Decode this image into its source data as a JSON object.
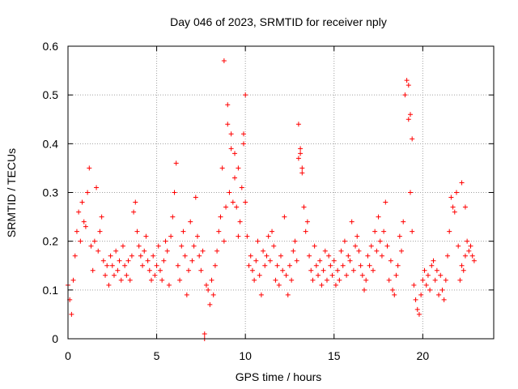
{
  "chart_data": {
    "type": "scatter",
    "title": "Day 046 of 2023, SRMTID for receiver nply",
    "xlabel": "GPS time / hours",
    "ylabel": "SRMTID / TECUs",
    "xlim": [
      0,
      24
    ],
    "ylim": [
      0,
      0.6
    ],
    "xticks": [
      0,
      5,
      10,
      15,
      20
    ],
    "xtick_labels": [
      "0",
      "5",
      "10",
      "15",
      "20"
    ],
    "yticks": [
      0,
      0.1,
      0.2,
      0.3,
      0.4,
      0.5,
      0.6
    ],
    "ytick_labels": [
      "0",
      "0.1",
      "0.2",
      "0.3",
      "0.4",
      "0.5",
      "0.6"
    ],
    "grid": true,
    "marker": "+",
    "marker_color": "#ff0000",
    "series": [
      {
        "name": "SRMTID",
        "x": [
          0.0,
          0.1,
          0.2,
          0.3,
          0.4,
          0.5,
          0.6,
          0.7,
          0.8,
          0.9,
          1.0,
          1.1,
          1.2,
          1.3,
          1.4,
          1.5,
          1.6,
          1.7,
          1.8,
          1.9,
          2.0,
          2.1,
          2.2,
          2.3,
          2.4,
          2.5,
          2.6,
          2.7,
          2.8,
          2.9,
          3.0,
          3.1,
          3.2,
          3.3,
          3.4,
          3.5,
          3.6,
          3.7,
          3.8,
          3.9,
          4.0,
          4.1,
          4.2,
          4.3,
          4.4,
          4.5,
          4.6,
          4.7,
          4.8,
          4.9,
          5.0,
          5.1,
          5.2,
          5.3,
          5.4,
          5.5,
          5.6,
          5.7,
          5.8,
          5.9,
          6.0,
          6.1,
          6.2,
          6.3,
          6.4,
          6.5,
          6.6,
          6.7,
          6.8,
          6.9,
          7.0,
          7.1,
          7.2,
          7.3,
          7.4,
          7.5,
          7.6,
          7.7,
          7.8,
          7.9,
          8.0,
          8.1,
          8.2,
          8.3,
          8.4,
          8.5,
          8.6,
          8.7,
          8.8,
          8.9,
          9.0,
          9.1,
          9.2,
          9.3,
          9.4,
          9.5,
          9.6,
          9.7,
          9.8,
          9.9,
          10.0,
          10.1,
          10.2,
          10.3,
          10.4,
          10.5,
          10.6,
          10.7,
          10.8,
          10.9,
          11.0,
          11.1,
          11.2,
          11.3,
          11.4,
          11.5,
          11.6,
          11.7,
          11.8,
          11.9,
          12.0,
          12.1,
          12.2,
          12.3,
          12.4,
          12.5,
          12.6,
          12.7,
          12.8,
          12.9,
          13.0,
          13.1,
          13.2,
          13.3,
          13.4,
          13.5,
          13.6,
          13.7,
          13.8,
          13.9,
          14.0,
          14.1,
          14.2,
          14.3,
          14.4,
          14.5,
          14.6,
          14.7,
          14.8,
          14.9,
          15.0,
          15.1,
          15.2,
          15.3,
          15.4,
          15.5,
          15.6,
          15.7,
          15.8,
          15.9,
          16.0,
          16.1,
          16.2,
          16.3,
          16.4,
          16.5,
          16.6,
          16.7,
          16.8,
          16.9,
          17.0,
          17.1,
          17.2,
          17.3,
          17.4,
          17.5,
          17.6,
          17.7,
          17.8,
          17.9,
          18.0,
          18.1,
          18.2,
          18.3,
          18.4,
          18.5,
          18.6,
          18.7,
          18.8,
          18.9,
          19.0,
          19.1,
          19.2,
          19.3,
          19.4,
          19.5,
          19.6,
          19.7,
          19.8,
          19.9,
          20.0,
          20.1,
          20.2,
          20.3,
          20.4,
          20.5,
          20.6,
          20.7,
          20.8,
          20.9,
          21.0,
          21.1,
          21.2,
          21.3,
          21.4,
          21.5,
          21.6,
          21.7,
          21.8,
          21.9,
          22.0,
          22.1,
          22.2,
          22.3,
          22.4,
          22.5,
          22.6,
          22.7,
          22.8,
          22.9,
          7.7,
          8.8,
          9.0,
          9.2,
          9.4,
          9.6,
          9.9,
          10.0,
          13.0,
          13.1,
          13.2,
          19.2,
          19.3,
          19.4,
          22.2,
          22.4
        ],
        "y": [
          0.11,
          0.08,
          0.05,
          0.12,
          0.17,
          0.22,
          0.26,
          0.2,
          0.28,
          0.24,
          0.23,
          0.3,
          0.35,
          0.19,
          0.14,
          0.2,
          0.31,
          0.18,
          0.22,
          0.25,
          0.16,
          0.13,
          0.15,
          0.11,
          0.17,
          0.15,
          0.13,
          0.18,
          0.14,
          0.16,
          0.12,
          0.19,
          0.15,
          0.13,
          0.16,
          0.12,
          0.17,
          0.26,
          0.28,
          0.22,
          0.19,
          0.17,
          0.15,
          0.18,
          0.21,
          0.16,
          0.14,
          0.12,
          0.17,
          0.13,
          0.15,
          0.19,
          0.14,
          0.12,
          0.16,
          0.2,
          0.18,
          0.11,
          0.21,
          0.25,
          0.3,
          0.36,
          0.15,
          0.12,
          0.19,
          0.22,
          0.17,
          0.09,
          0.14,
          0.24,
          0.16,
          0.19,
          0.29,
          0.21,
          0.17,
          0.14,
          0.18,
          0.0,
          0.11,
          0.1,
          0.07,
          0.12,
          0.09,
          0.15,
          0.18,
          0.22,
          0.25,
          0.35,
          0.2,
          0.27,
          0.44,
          0.3,
          0.39,
          0.28,
          0.33,
          0.27,
          0.21,
          0.24,
          0.31,
          0.4,
          0.28,
          0.21,
          0.15,
          0.17,
          0.14,
          0.12,
          0.16,
          0.2,
          0.13,
          0.09,
          0.18,
          0.15,
          0.17,
          0.21,
          0.16,
          0.22,
          0.19,
          0.12,
          0.15,
          0.11,
          0.17,
          0.14,
          0.25,
          0.13,
          0.09,
          0.15,
          0.12,
          0.18,
          0.2,
          0.16,
          0.37,
          0.39,
          0.35,
          0.27,
          0.22,
          0.24,
          0.17,
          0.14,
          0.12,
          0.19,
          0.15,
          0.13,
          0.16,
          0.11,
          0.14,
          0.18,
          0.12,
          0.17,
          0.15,
          0.13,
          0.16,
          0.11,
          0.14,
          0.12,
          0.18,
          0.15,
          0.2,
          0.13,
          0.17,
          0.16,
          0.24,
          0.14,
          0.19,
          0.21,
          0.18,
          0.15,
          0.13,
          0.1,
          0.12,
          0.17,
          0.15,
          0.19,
          0.14,
          0.22,
          0.18,
          0.25,
          0.2,
          0.17,
          0.22,
          0.28,
          0.19,
          0.12,
          0.16,
          0.1,
          0.09,
          0.13,
          0.15,
          0.21,
          0.18,
          0.24,
          0.5,
          0.53,
          0.45,
          0.3,
          0.22,
          0.11,
          0.08,
          0.06,
          0.05,
          0.09,
          0.12,
          0.14,
          0.11,
          0.13,
          0.1,
          0.15,
          0.16,
          0.12,
          0.14,
          0.09,
          0.13,
          0.1,
          0.08,
          0.12,
          0.17,
          0.22,
          0.29,
          0.27,
          0.26,
          0.3,
          0.19,
          0.12,
          0.15,
          0.14,
          0.17,
          0.2,
          0.18,
          0.19,
          0.17,
          0.16,
          0.01,
          0.57,
          0.48,
          0.42,
          0.38,
          0.35,
          0.42,
          0.5,
          0.44,
          0.38,
          0.34,
          0.52,
          0.46,
          0.41,
          0.32,
          0.27
        ]
      }
    ]
  }
}
